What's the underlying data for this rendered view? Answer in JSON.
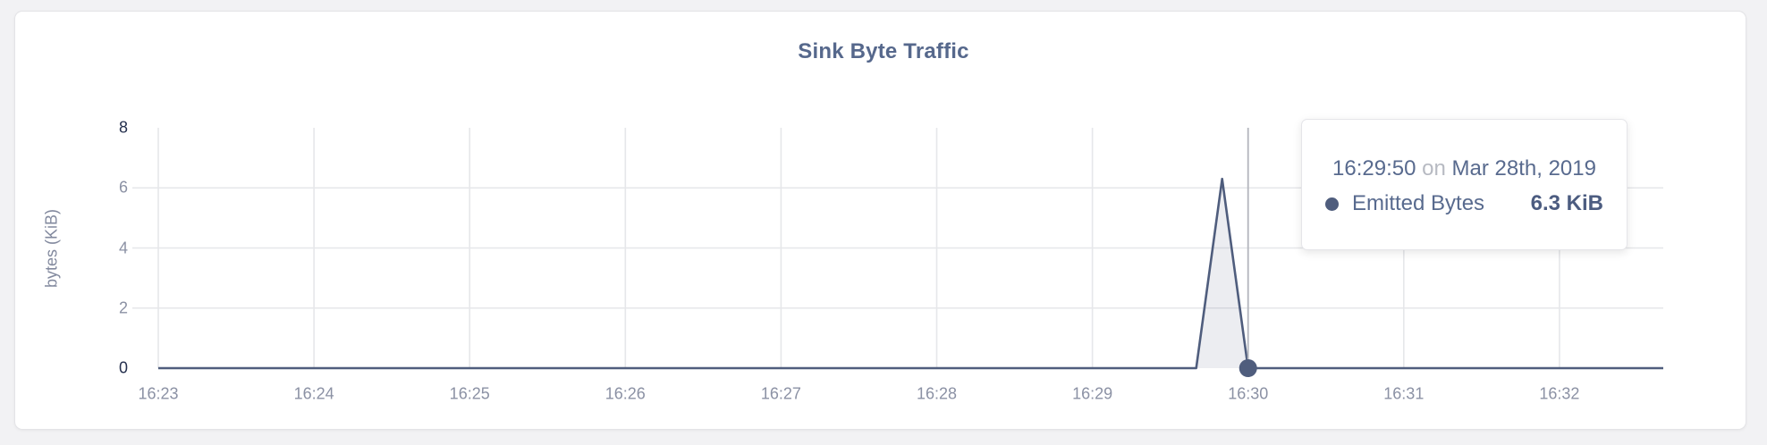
{
  "card": {
    "role": "chart panel"
  },
  "chart_data": {
    "type": "area",
    "title": "Sink Byte Traffic",
    "xlabel": "",
    "ylabel": "bytes (KiB)",
    "x_ticks": [
      "16:23",
      "16:24",
      "16:25",
      "16:26",
      "16:27",
      "16:28",
      "16:29",
      "16:30",
      "16:31",
      "16:32"
    ],
    "y_ticks": [
      0,
      2,
      4,
      6,
      8
    ],
    "ylim": [
      0,
      8
    ],
    "x_domain": [
      "16:23:00",
      "16:32:40"
    ],
    "grid": true,
    "legend_position": "none",
    "series": [
      {
        "name": "Emitted Bytes",
        "color": "#4f5d7d",
        "fill_opacity": 0.11,
        "points": [
          {
            "t": "16:23:00",
            "v": 0
          },
          {
            "t": "16:29:40",
            "v": 0
          },
          {
            "t": "16:29:50",
            "v": 6.3
          },
          {
            "t": "16:30:00",
            "v": 0
          },
          {
            "t": "16:32:40",
            "v": 0
          }
        ]
      }
    ],
    "hover": {
      "t": "16:30:00",
      "v": 0
    }
  },
  "tooltip": {
    "time": "16:29:50",
    "connector": "on",
    "date": "Mar 28th, 2019",
    "series_label": "Emitted Bytes",
    "value": "6.3 KiB",
    "dot_color": "#4f5d7d"
  }
}
